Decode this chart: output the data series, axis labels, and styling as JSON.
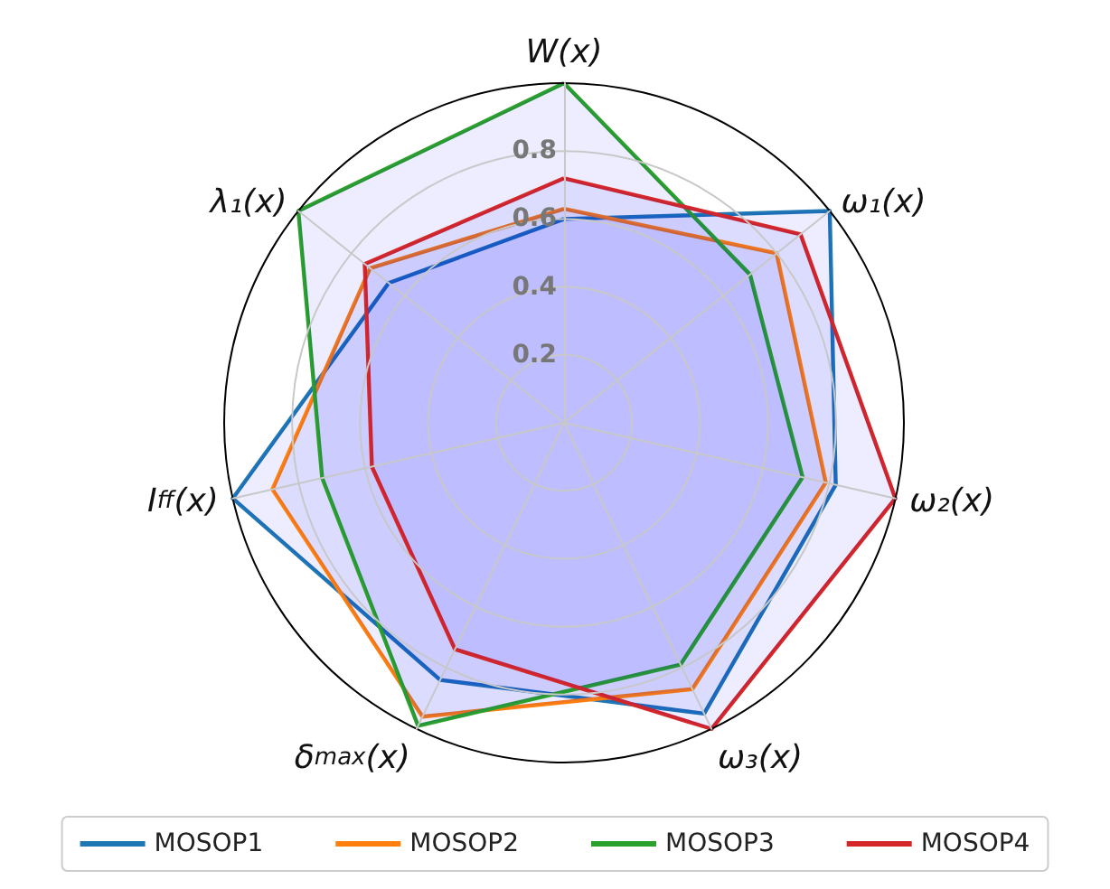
{
  "chart_data": {
    "type": "radar",
    "categories": [
      "W(x)",
      "ω₁(x)",
      "ω₂(x)",
      "ω₃(x)",
      "δ$_{max}$(x)",
      "I$_{ff}$(x)",
      "λ₁(x)"
    ],
    "ylim": [
      0,
      1
    ],
    "yticks": [
      0.2,
      0.4,
      0.6,
      0.8
    ],
    "grid": true,
    "legend": "bottom",
    "series": [
      {
        "name": "MOSOP1",
        "color": "#1f77b4",
        "values": [
          0.6,
          1.0,
          0.82,
          0.95,
          0.84,
          1.0,
          0.66
        ]
      },
      {
        "name": "MOSOP2",
        "color": "#ff7f0e",
        "values": [
          0.63,
          0.8,
          0.79,
          0.87,
          0.96,
          0.88,
          0.73
        ]
      },
      {
        "name": "MOSOP3",
        "color": "#2ca02c",
        "values": [
          1.0,
          0.7,
          0.72,
          0.79,
          0.99,
          0.73,
          1.0
        ]
      },
      {
        "name": "MOSOP4",
        "color": "#d62728",
        "values": [
          0.72,
          0.89,
          1.0,
          1.0,
          0.74,
          0.58,
          0.75
        ]
      }
    ]
  }
}
